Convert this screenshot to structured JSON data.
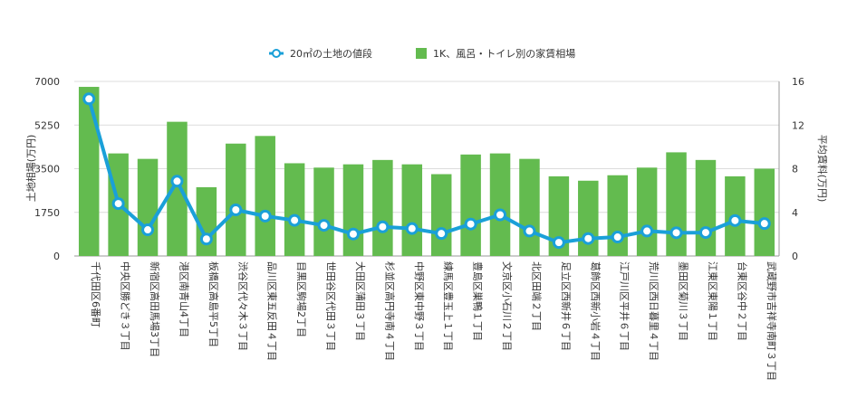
{
  "chart_data": {
    "type": "bar",
    "legend": {
      "placement": "top-center",
      "entries": [
        {
          "name": "20㎡の土地の値段",
          "kind": "line",
          "color": "#1aa0d8"
        },
        {
          "name": "1K、風呂・トイレ別の家賃相場",
          "kind": "bar",
          "color": "#63bb4f"
        }
      ]
    },
    "y_left": {
      "label": "土地相場(万円)",
      "min": 0,
      "max": 7000,
      "ticks": [
        "0",
        "1750",
        "3500",
        "5250",
        "7000"
      ]
    },
    "y_right": {
      "label": "平均賃料(万円)",
      "min": 0,
      "max": 16,
      "ticks": [
        "0",
        "4",
        "8",
        "12",
        "16"
      ]
    },
    "grid": true,
    "categories": [
      "千代田区6番町",
      "中央区勝どき３丁目",
      "新宿区高田馬場3丁目",
      "港区南青山4丁目",
      "板橋区高島平5丁目",
      "渋谷区代々木３丁目",
      "品川区東五反田４丁目",
      "目黒区駒場2丁目",
      "世田谷区代田３丁目",
      "大田区蒲田３丁目",
      "杉並区高円寺南４丁目",
      "中野区東中野３丁目",
      "練馬区豊玉上１丁目",
      "豊島区巣鴨１丁目",
      "文京区小石川２丁目",
      "北区田端２丁目",
      "足立区西新井６丁目",
      "葛飾区西新小岩４丁目",
      "江戸川区平井６丁目",
      "荒川区西日暮里４丁目",
      "墨田区菊川３丁目",
      "江東区東陽１丁目",
      "台東区谷中２丁目",
      "武蔵野市吉祥寺南町３丁目"
    ],
    "series": [
      {
        "name": "1K、風呂・トイレ別の家賃相場",
        "type": "bar",
        "axis": "right",
        "values": [
          15.5,
          9.4,
          8.9,
          12.3,
          6.3,
          10.3,
          11.0,
          8.5,
          8.1,
          8.4,
          8.8,
          8.4,
          7.5,
          9.3,
          9.4,
          8.9,
          7.3,
          6.9,
          7.4,
          8.1,
          9.5,
          8.8,
          7.3,
          8.0
        ]
      },
      {
        "name": "20㎡の土地の値段",
        "type": "line",
        "axis": "left",
        "values": [
          6300,
          2100,
          1050,
          3000,
          680,
          1850,
          1600,
          1430,
          1230,
          880,
          1170,
          1100,
          900,
          1280,
          1650,
          1000,
          540,
          700,
          760,
          1000,
          930,
          940,
          1420,
          1300
        ]
      }
    ]
  }
}
